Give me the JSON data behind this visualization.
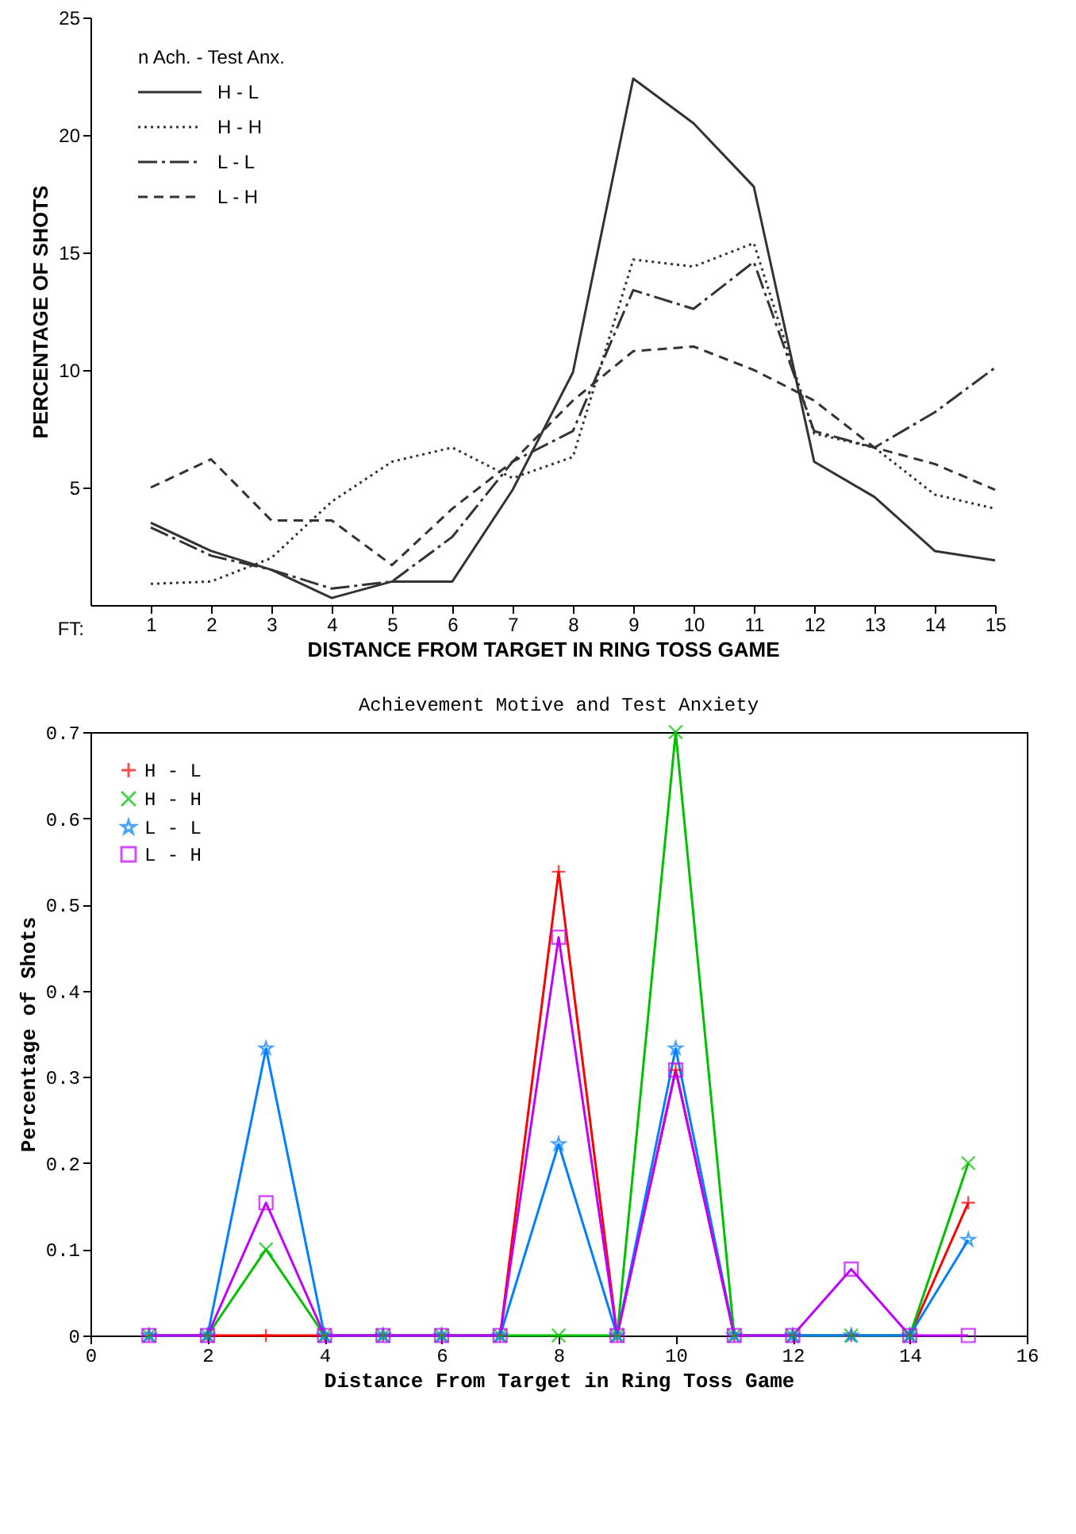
{
  "chart_data": [
    {
      "type": "line",
      "xlabel": "DISTANCE FROM TARGET IN RING TOSS GAME",
      "ylabel": "PERCENTAGE OF SHOTS",
      "legend_title": "n Ach. - Test Anx.",
      "annotations": [
        "FT:"
      ],
      "x": [
        1,
        2,
        3,
        4,
        5,
        6,
        7,
        8,
        9,
        10,
        11,
        12,
        13,
        14,
        15
      ],
      "series": [
        {
          "name": "H - L",
          "color": "#333333",
          "line_style": "solid",
          "values": [
            3.5,
            2.3,
            1.5,
            0.3,
            1.0,
            1.0,
            4.9,
            9.9,
            22.4,
            20.5,
            17.8,
            6.1,
            4.6,
            2.3,
            1.9
          ]
        },
        {
          "name": "H - H",
          "color": "#333333",
          "line_style": "dotted",
          "values": [
            0.9,
            1.0,
            2.0,
            4.4,
            6.1,
            6.7,
            5.4,
            6.3,
            14.7,
            14.4,
            15.4,
            7.3,
            6.7,
            4.7,
            4.1
          ]
        },
        {
          "name": "L - L",
          "color": "#333333",
          "line_style": "dashdot",
          "values": [
            3.3,
            2.1,
            1.5,
            0.7,
            1.0,
            2.9,
            6.1,
            7.4,
            13.4,
            12.6,
            14.6,
            7.4,
            6.7,
            8.2,
            10.1
          ]
        },
        {
          "name": "L - H",
          "color": "#333333",
          "line_style": "dashed",
          "values": [
            5.0,
            6.2,
            3.6,
            3.6,
            1.7,
            4.1,
            6.1,
            8.7,
            10.8,
            11.0,
            10.0,
            8.7,
            6.7,
            6.0,
            4.9
          ]
        }
      ],
      "xlim": [
        0,
        15
      ],
      "xticks": [
        1,
        2,
        3,
        4,
        5,
        6,
        7,
        8,
        9,
        10,
        11,
        12,
        13,
        14,
        15
      ],
      "ylim": [
        0,
        25
      ],
      "yticks": [
        5,
        10,
        15,
        20,
        25
      ],
      "grid": false,
      "legend": "top left"
    },
    {
      "type": "line",
      "title": "Achievement Motive and Test Anxiety",
      "xlabel": "Distance From Target in Ring Toss Game",
      "ylabel": "Percentage of Shots",
      "x": [
        1,
        2,
        3,
        4,
        5,
        6,
        7,
        8,
        9,
        10,
        11,
        12,
        13,
        14,
        15
      ],
      "series": [
        {
          "name": "H - L",
          "color": "#ff0000",
          "marker": "cross",
          "values": [
            0,
            0,
            0,
            0,
            0,
            0,
            0,
            0.538,
            0,
            0.308,
            0,
            0,
            0,
            0,
            0.154
          ]
        },
        {
          "name": "H - H",
          "color": "#00c000",
          "marker": "x",
          "values": [
            0,
            0,
            0.1,
            0,
            0,
            0,
            0,
            0,
            0,
            0.7,
            0,
            0,
            0,
            0,
            0.2
          ]
        },
        {
          "name": "L - L",
          "color": "#0080ff",
          "marker": "star",
          "values": [
            0,
            0,
            0.333,
            0,
            0,
            0,
            0,
            0.222,
            0,
            0.333,
            0,
            0,
            0,
            0,
            0.111
          ]
        },
        {
          "name": "L - H",
          "color": "#c000ff",
          "marker": "square",
          "values": [
            0,
            0,
            0.154,
            0,
            0,
            0,
            0,
            0.462,
            0,
            0.308,
            0,
            0,
            0.077,
            0,
            0
          ]
        }
      ],
      "xlim": [
        0,
        16
      ],
      "xticks": [
        0,
        2,
        4,
        6,
        8,
        10,
        12,
        14,
        16
      ],
      "ylim": [
        0,
        0.7
      ],
      "yticks": [
        0,
        0.1,
        0.2,
        0.3,
        0.4,
        0.5,
        0.6,
        0.7
      ],
      "grid": false,
      "legend": "top left"
    }
  ]
}
